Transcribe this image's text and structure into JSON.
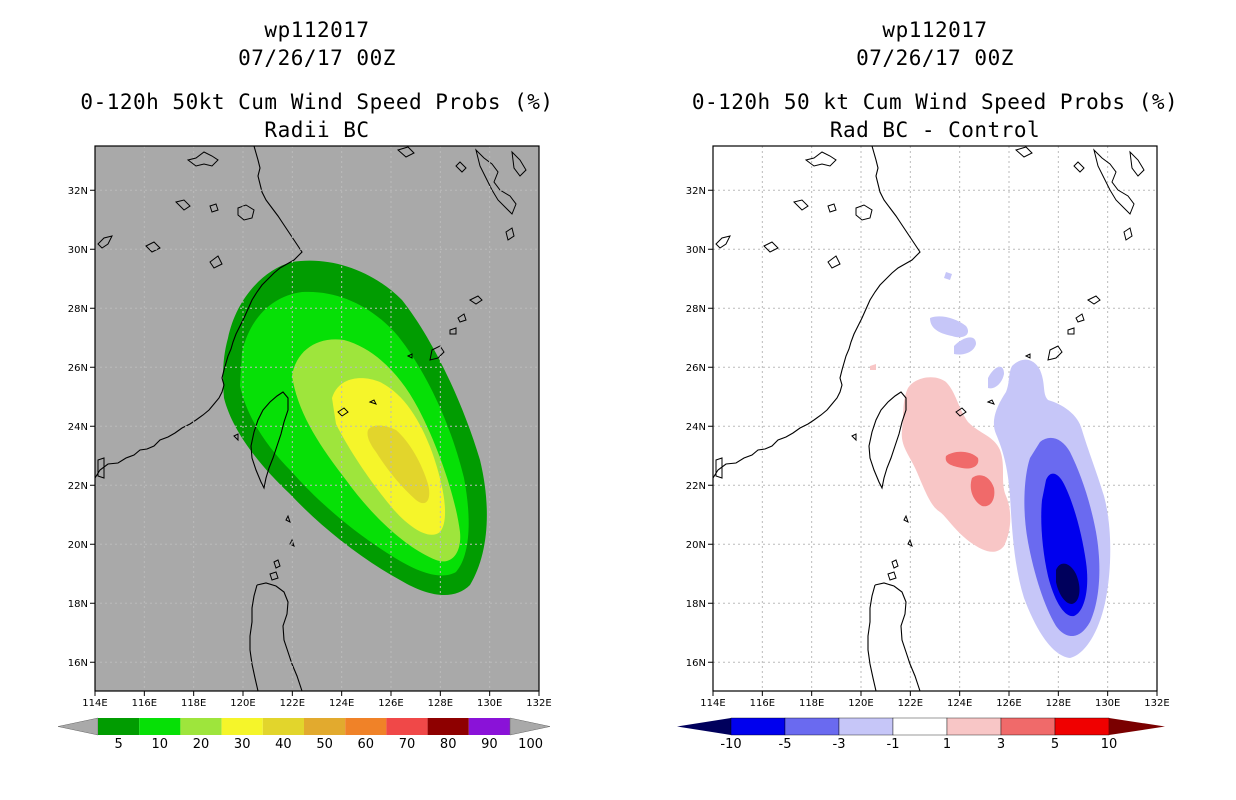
{
  "left_panel": {
    "storm_id": "wp112017",
    "datetime": "07/26/17 00Z",
    "product": "0-120h 50kt Cum Wind Speed Probs (%)",
    "subtitle": "Radii BC",
    "background_color": "#a9a9a9",
    "colorbar": {
      "labels": [
        "5",
        "10",
        "20",
        "30",
        "40",
        "50",
        "60",
        "70",
        "80",
        "90",
        "100"
      ],
      "colors": [
        "#019c01",
        "#06e006",
        "#9ee53c",
        "#f5f52a",
        "#e2d52c",
        "#e2aa2e",
        "#f08228",
        "#f04848",
        "#8e0000",
        "#8a12d8"
      ]
    }
  },
  "right_panel": {
    "storm_id": "wp112017",
    "datetime": "07/26/17 00Z",
    "product": "0-120h 50 kt Cum Wind Speed Probs (%)",
    "subtitle": "Rad BC - Control",
    "colorbar": {
      "labels": [
        "-10",
        "-5",
        "-3",
        "-1",
        "1",
        "3",
        "5",
        "10"
      ],
      "colors": [
        "#00005c",
        "#0000ee",
        "#6a6af0",
        "#c6c6f8",
        "#ffffff",
        "#f8c6c6",
        "#f06a6a",
        "#f00000",
        "#7a0000"
      ]
    }
  },
  "axes": {
    "lon_labels": [
      "114E",
      "116E",
      "118E",
      "120E",
      "122E",
      "124E",
      "126E",
      "128E",
      "130E",
      "132E"
    ],
    "lat_labels": [
      "32N",
      "30N",
      "28N",
      "26N",
      "24N",
      "22N",
      "20N",
      "18N",
      "16N"
    ]
  }
}
